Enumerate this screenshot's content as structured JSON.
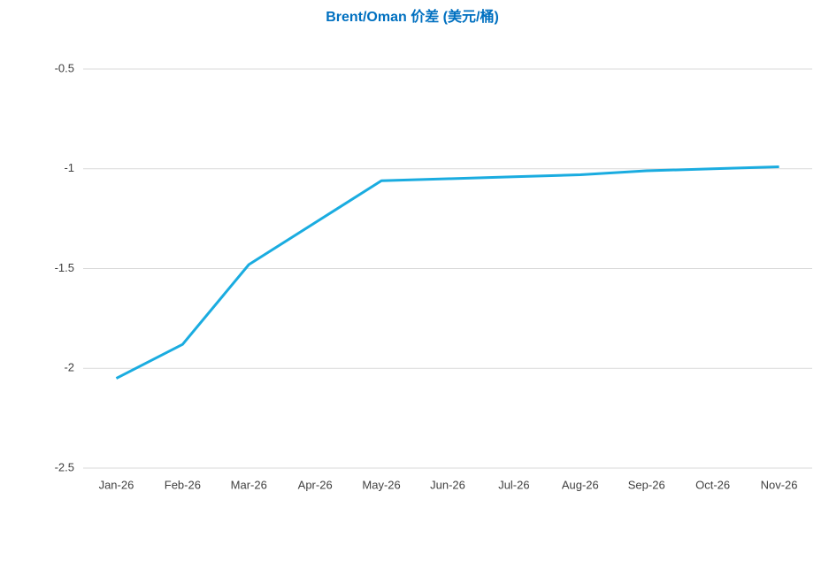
{
  "chart_data": {
    "type": "line",
    "title": "Brent/Oman 价差 (美元/桶)",
    "categories": [
      "Jan-26",
      "Feb-26",
      "Mar-26",
      "Apr-26",
      "May-26",
      "Jun-26",
      "Jul-26",
      "Aug-26",
      "Sep-26",
      "Oct-26",
      "Nov-26"
    ],
    "series": [
      {
        "name": "Brent/Oman",
        "color": "#1aace0",
        "values": [
          -2.05,
          -1.88,
          -1.48,
          -1.27,
          -1.06,
          -1.05,
          -1.04,
          -1.03,
          -1.01,
          -1.0,
          -0.99
        ]
      }
    ],
    "ylim": [
      -2.5,
      -0.5
    ],
    "yticks": [
      -0.5,
      -1,
      -1.5,
      -2,
      -2.5
    ],
    "grid": true
  }
}
